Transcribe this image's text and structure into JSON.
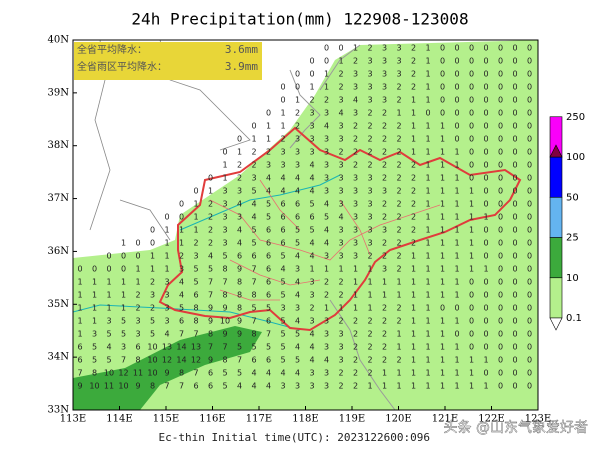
{
  "map": {
    "title": "24h Precipitation(mm) 122908-123008",
    "info_box": [
      [
        "全省平均降水：",
        "3.6mm"
      ],
      [
        "全省雨区平均降水：",
        "3.9mm"
      ]
    ],
    "x_ticks": [
      "113E",
      "114E",
      "115E",
      "116E",
      "117E",
      "118E",
      "119E",
      "120E",
      "121E",
      "122E",
      "123E"
    ],
    "y_ticks": [
      "33N",
      "34N",
      "35N",
      "36N",
      "37N",
      "38N",
      "39N",
      "40N"
    ],
    "colorbar": {
      "levels": [
        0.1,
        10,
        25,
        50,
        100,
        250
      ],
      "colors": [
        "#b4f08c",
        "#3caa3c",
        "#64b4f0",
        "#0000ff",
        "#fa00fa",
        "#800040"
      ]
    },
    "footer": "Ec-thin   Initial time(UTC): 2023122600:096",
    "watermark": "头条 @山东气象爱好者",
    "grid": [
      [
        null,
        null,
        null,
        null,
        null,
        null,
        null,
        null,
        null,
        null,
        null,
        null,
        null,
        null,
        null,
        null,
        null,
        0,
        0,
        1,
        2,
        3,
        3,
        2,
        1,
        0,
        0,
        0,
        0,
        0,
        0,
        0
      ],
      [
        null,
        null,
        null,
        null,
        null,
        null,
        null,
        null,
        null,
        null,
        null,
        null,
        null,
        null,
        null,
        null,
        0,
        0,
        1,
        2,
        3,
        3,
        3,
        2,
        1,
        0,
        0,
        0,
        0,
        0,
        0,
        0
      ],
      [
        null,
        null,
        null,
        null,
        null,
        null,
        null,
        null,
        null,
        null,
        null,
        null,
        null,
        null,
        null,
        0,
        0,
        1,
        2,
        3,
        3,
        3,
        3,
        2,
        1,
        0,
        0,
        0,
        0,
        0,
        0,
        0
      ],
      [
        null,
        null,
        null,
        null,
        null,
        null,
        null,
        null,
        null,
        null,
        null,
        null,
        null,
        null,
        0,
        0,
        1,
        1,
        2,
        3,
        3,
        3,
        2,
        2,
        1,
        0,
        0,
        0,
        0,
        0,
        0,
        0
      ],
      [
        null,
        null,
        null,
        null,
        null,
        null,
        null,
        null,
        null,
        null,
        null,
        null,
        null,
        null,
        0,
        1,
        2,
        2,
        3,
        4,
        3,
        3,
        2,
        1,
        1,
        0,
        0,
        0,
        0,
        0,
        0,
        0
      ],
      [
        null,
        null,
        null,
        null,
        null,
        null,
        null,
        null,
        null,
        null,
        null,
        null,
        null,
        0,
        1,
        2,
        3,
        3,
        4,
        3,
        2,
        2,
        1,
        1,
        0,
        0,
        0,
        0,
        0,
        0,
        0,
        0
      ],
      [
        null,
        null,
        null,
        null,
        null,
        null,
        null,
        null,
        null,
        null,
        null,
        null,
        0,
        1,
        1,
        2,
        3,
        4,
        3,
        2,
        2,
        2,
        2,
        1,
        1,
        1,
        0,
        0,
        0,
        0,
        0,
        0
      ],
      [
        null,
        null,
        null,
        null,
        null,
        null,
        null,
        null,
        null,
        null,
        null,
        0,
        1,
        1,
        2,
        3,
        3,
        3,
        3,
        2,
        2,
        2,
        2,
        1,
        1,
        1,
        0,
        0,
        0,
        0,
        0,
        0
      ],
      [
        null,
        null,
        null,
        null,
        null,
        null,
        null,
        null,
        null,
        null,
        0,
        1,
        2,
        2,
        3,
        3,
        3,
        3,
        2,
        2,
        2,
        2,
        2,
        1,
        1,
        1,
        1,
        0,
        0,
        0,
        0,
        0
      ],
      [
        null,
        null,
        null,
        null,
        null,
        null,
        null,
        null,
        null,
        null,
        1,
        2,
        2,
        3,
        3,
        3,
        4,
        3,
        3,
        2,
        2,
        2,
        2,
        2,
        1,
        1,
        1,
        0,
        0,
        0,
        0,
        0
      ],
      [
        null,
        null,
        null,
        null,
        null,
        null,
        null,
        null,
        null,
        0,
        1,
        2,
        3,
        4,
        4,
        4,
        4,
        3,
        3,
        3,
        3,
        2,
        2,
        2,
        1,
        1,
        1,
        0,
        0,
        0,
        0,
        0
      ],
      [
        null,
        null,
        null,
        null,
        null,
        null,
        null,
        null,
        0,
        1,
        3,
        3,
        5,
        4,
        4,
        4,
        4,
        3,
        3,
        3,
        3,
        3,
        2,
        2,
        1,
        1,
        1,
        1,
        0,
        0,
        0,
        0
      ],
      [
        null,
        null,
        null,
        null,
        null,
        null,
        null,
        0,
        1,
        2,
        3,
        4,
        4,
        5,
        6,
        6,
        5,
        4,
        3,
        3,
        3,
        2,
        2,
        2,
        1,
        1,
        1,
        1,
        0,
        0,
        0,
        0
      ],
      [
        null,
        null,
        null,
        null,
        null,
        null,
        0,
        0,
        1,
        2,
        3,
        3,
        4,
        5,
        6,
        6,
        6,
        5,
        4,
        3,
        3,
        2,
        2,
        2,
        1,
        1,
        1,
        1,
        1,
        0,
        0,
        0
      ],
      [
        null,
        null,
        null,
        null,
        null,
        0,
        1,
        1,
        1,
        2,
        3,
        4,
        5,
        6,
        6,
        5,
        5,
        4,
        3,
        3,
        3,
        3,
        2,
        2,
        1,
        1,
        1,
        1,
        0,
        0,
        0,
        0
      ],
      [
        null,
        null,
        null,
        1,
        0,
        0,
        1,
        1,
        2,
        2,
        3,
        4,
        5,
        6,
        6,
        5,
        4,
        4,
        3,
        3,
        3,
        2,
        2,
        2,
        1,
        1,
        1,
        1,
        0,
        0,
        0,
        0
      ],
      [
        null,
        null,
        0,
        0,
        0,
        1,
        1,
        2,
        3,
        4,
        5,
        6,
        6,
        6,
        5,
        4,
        4,
        3,
        3,
        3,
        2,
        2,
        2,
        1,
        1,
        1,
        1,
        1,
        0,
        0,
        0,
        0
      ],
      [
        0,
        0,
        0,
        0,
        1,
        1,
        1,
        3,
        5,
        5,
        8,
        9,
        7,
        6,
        4,
        3,
        1,
        1,
        1,
        1,
        1,
        3,
        2,
        1,
        1,
        1,
        1,
        1,
        1,
        0,
        0,
        0
      ],
      [
        1,
        1,
        1,
        1,
        1,
        2,
        3,
        4,
        5,
        7,
        7,
        8,
        7,
        6,
        5,
        4,
        3,
        2,
        2,
        1,
        1,
        1,
        1,
        1,
        1,
        1,
        1,
        0,
        0,
        0,
        0,
        0
      ],
      [
        1,
        1,
        1,
        1,
        2,
        3,
        3,
        4,
        6,
        7,
        8,
        8,
        8,
        6,
        5,
        4,
        3,
        2,
        2,
        1,
        1,
        1,
        1,
        1,
        1,
        1,
        1,
        0,
        0,
        0,
        0,
        0
      ],
      [
        1,
        1,
        1,
        1,
        2,
        2,
        3,
        5,
        8,
        9,
        9,
        8,
        5,
        5,
        3,
        3,
        2,
        1,
        1,
        1,
        1,
        2,
        2,
        1,
        1,
        0,
        0,
        0,
        0,
        0,
        0,
        0
      ],
      [
        1,
        1,
        3,
        5,
        3,
        5,
        3,
        6,
        8,
        9,
        10,
        9,
        7,
        6,
        5,
        4,
        3,
        3,
        2,
        2,
        2,
        2,
        2,
        1,
        1,
        1,
        1,
        0,
        0,
        0,
        0,
        0
      ],
      [
        1,
        3,
        5,
        5,
        3,
        5,
        4,
        7,
        7,
        8,
        9,
        9,
        8,
        7,
        5,
        5,
        4,
        3,
        3,
        2,
        2,
        2,
        1,
        1,
        1,
        1,
        0,
        0,
        0,
        0,
        0,
        0
      ],
      [
        6,
        5,
        4,
        3,
        6,
        10,
        13,
        14,
        13,
        7,
        7,
        5,
        5,
        5,
        5,
        4,
        4,
        3,
        3,
        2,
        2,
        2,
        1,
        1,
        1,
        1,
        1,
        0,
        0,
        0,
        0,
        0
      ],
      [
        6,
        5,
        5,
        7,
        8,
        10,
        12,
        14,
        12,
        9,
        8,
        7,
        6,
        6,
        5,
        5,
        4,
        4,
        3,
        2,
        2,
        2,
        2,
        1,
        1,
        1,
        1,
        1,
        1,
        0,
        0,
        0
      ],
      [
        7,
        8,
        10,
        12,
        11,
        10,
        9,
        8,
        7,
        6,
        5,
        5,
        4,
        4,
        4,
        4,
        3,
        3,
        2,
        2,
        2,
        1,
        1,
        1,
        1,
        1,
        1,
        1,
        0,
        0,
        0,
        0
      ],
      [
        9,
        10,
        11,
        10,
        9,
        8,
        7,
        7,
        6,
        6,
        5,
        4,
        4,
        4,
        3,
        3,
        3,
        3,
        2,
        2,
        1,
        1,
        1,
        1,
        1,
        1,
        1,
        1,
        1,
        0,
        0,
        0
      ]
    ]
  }
}
